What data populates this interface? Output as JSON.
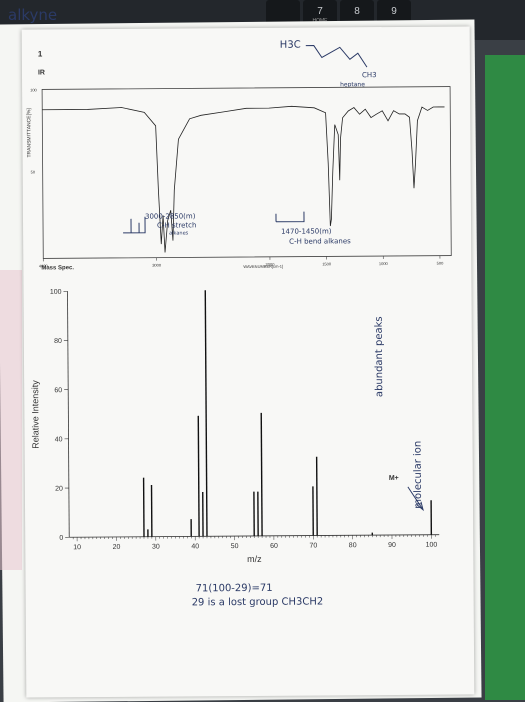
{
  "keyboard": {
    "keys": [
      "7",
      "8",
      "9"
    ],
    "home_label": "HOME"
  },
  "handwritten": {
    "title": "alkyne",
    "structure_left": "H3C",
    "structure_right": "CH3",
    "compound": "heptane",
    "ir_note_1_line1": "3000-2850(m)",
    "ir_note_1_line2": "C-H stretch",
    "ir_note_1_line3": "alkanes",
    "ir_note_2_line1": "1470-1450(m)",
    "ir_note_2_line2": "C-H bend alkanes",
    "abundant": "abundant peaks",
    "molecular_ion": "molecular ion",
    "calc_line1": "71(100-29)=71",
    "calc_line2": "29 is a lost group CH3CH2"
  },
  "printed": {
    "ir_label": "IR",
    "ir_heading_mark": "1",
    "ir_y_axis": "TRANSMITTANCE[%]",
    "ir_y_top": "100",
    "ir_y_mid": "50",
    "ir_x_axis": "WAVENUMBER[cm-1]",
    "mass_spec_label": "Mass Spec.",
    "m_plus": "M+"
  },
  "chart_data": [
    {
      "type": "line",
      "title": "IR",
      "xlabel": "WAVENUMBER[cm-1]",
      "ylabel": "TRANSMITTANCE[%]",
      "x_ticks": [
        4000,
        3000,
        2000,
        1500,
        1000,
        500
      ],
      "y_ticks": [
        50,
        100
      ],
      "xlim": [
        4000,
        400
      ],
      "ylim": [
        0,
        100
      ],
      "series": [
        {
          "x": [
            4000,
            3600,
            3300,
            3100,
            3000,
            2980,
            2958,
            2940,
            2925,
            2900,
            2872,
            2855,
            2840,
            2800,
            2700,
            2600,
            2400,
            2200,
            2000,
            1800,
            1600,
            1500,
            1480,
            1465,
            1455,
            1440,
            1420,
            1390,
            1379,
            1370,
            1350,
            1300,
            1250,
            1200,
            1150,
            1100,
            1050,
            1000,
            950,
            900,
            850,
            800,
            760,
            740,
            725,
            710,
            690,
            650,
            600,
            550,
            500,
            450
          ],
          "y": [
            88,
            88,
            89,
            86,
            78,
            40,
            8,
            25,
            3,
            22,
            28,
            10,
            40,
            70,
            82,
            84,
            86,
            88,
            88,
            89,
            88,
            85,
            55,
            18,
            22,
            50,
            78,
            72,
            45,
            70,
            82,
            86,
            88,
            84,
            87,
            82,
            84,
            86,
            80,
            86,
            84,
            84,
            82,
            62,
            40,
            55,
            80,
            88,
            86,
            88,
            88,
            88
          ]
        }
      ]
    },
    {
      "type": "bar",
      "title": "Mass Spec.",
      "xlabel": "m/z",
      "ylabel": "Relative Intensity",
      "x_ticks": [
        10,
        20,
        30,
        40,
        50,
        60,
        70,
        80,
        90,
        100
      ],
      "y_ticks": [
        0,
        20,
        40,
        60,
        80,
        100
      ],
      "xlim": [
        8,
        102
      ],
      "ylim": [
        0,
        100
      ],
      "x": [
        27,
        28,
        29,
        39,
        41,
        42,
        43,
        55,
        56,
        57,
        70,
        71,
        85,
        100
      ],
      "values": [
        24,
        3,
        21,
        7,
        49,
        18,
        100,
        18,
        18,
        50,
        20,
        32,
        1,
        14
      ]
    }
  ]
}
